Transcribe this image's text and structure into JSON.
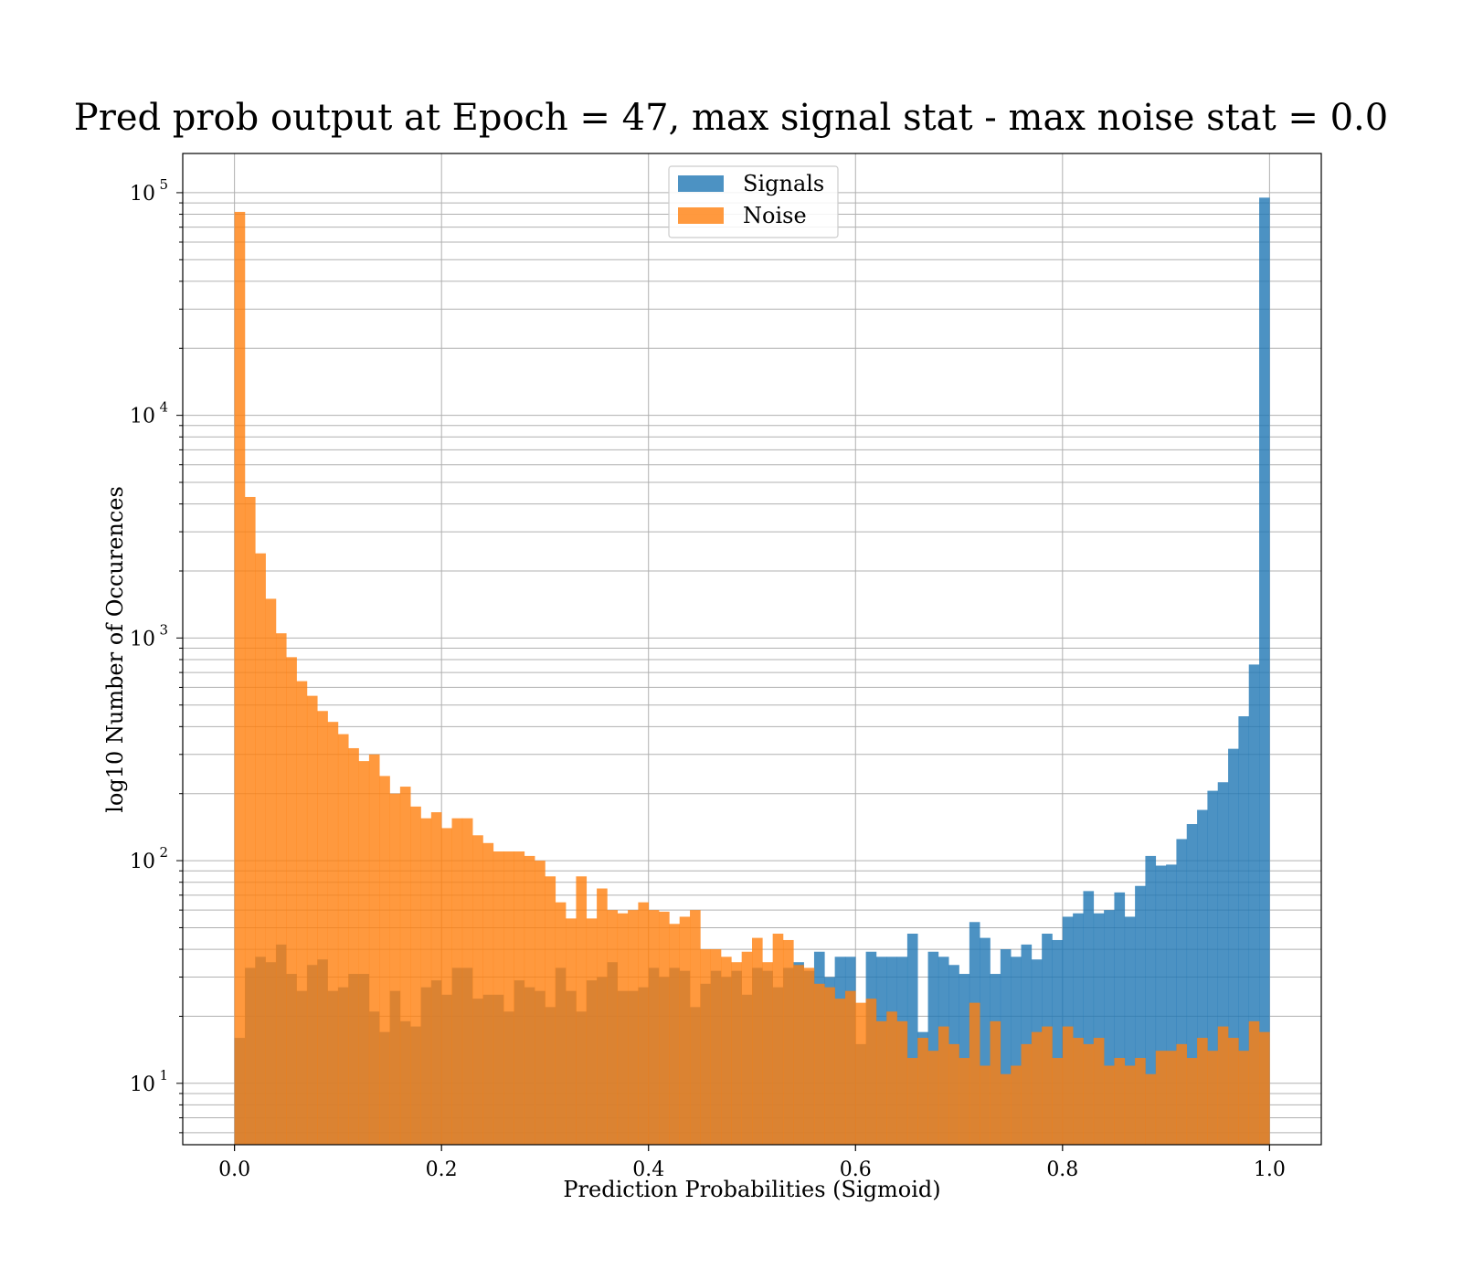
{
  "chart_data": {
    "type": "bar",
    "title": "Pred prob output at Epoch = 47, max signal stat - max noise stat = 0.0",
    "xlabel": "Prediction Probabilities (Sigmoid)",
    "ylabel": "log10 Number of Occurences",
    "xlim": [
      -0.05,
      1.05
    ],
    "ylim": [
      5.3,
      150000
    ],
    "log_y": true,
    "grid": true,
    "legend_position": "top-center",
    "bin_width": 0.01,
    "bin_start": 0.0,
    "x_ticks": [
      0.0,
      0.2,
      0.4,
      0.6,
      0.8,
      1.0
    ],
    "x_tick_labels": [
      "0.0",
      "0.2",
      "0.4",
      "0.6",
      "0.8",
      "1.0"
    ],
    "y_ticks": [
      {
        "value": 10,
        "base": "10",
        "exp": "1"
      },
      {
        "value": 100,
        "base": "10",
        "exp": "2"
      },
      {
        "value": 1000,
        "base": "10",
        "exp": "3"
      },
      {
        "value": 10000,
        "base": "10",
        "exp": "4"
      },
      {
        "value": 100000,
        "base": "10",
        "exp": "5"
      }
    ],
    "series": [
      {
        "name": "Signals",
        "color": "#1f77b4",
        "opacity": 0.8,
        "values": [
          16,
          33,
          37,
          35,
          42,
          31,
          26,
          34,
          36,
          26,
          27,
          31,
          31,
          21,
          17,
          26,
          19,
          18,
          27,
          29,
          25,
          33,
          33,
          24,
          25,
          25,
          21,
          29,
          27,
          26,
          22,
          33,
          26,
          21,
          29,
          30,
          35,
          26,
          26,
          27,
          33,
          30,
          33,
          32,
          22,
          28,
          32,
          30,
          32,
          25,
          33,
          32,
          27,
          33,
          35,
          32,
          39,
          30,
          37,
          37,
          15,
          39,
          37,
          37,
          37,
          47,
          17,
          39,
          37,
          34,
          31,
          53,
          45,
          31,
          40,
          37,
          42,
          36,
          47,
          44,
          56,
          58,
          73,
          58,
          60,
          72,
          56,
          77,
          105,
          95,
          96,
          125,
          146,
          169,
          206,
          225,
          318,
          445,
          760,
          95000
        ]
      },
      {
        "name": "Noise",
        "color": "#ff7f0e",
        "opacity": 0.8,
        "values": [
          82000,
          4300,
          2400,
          1500,
          1050,
          820,
          640,
          550,
          470,
          420,
          370,
          320,
          280,
          300,
          240,
          200,
          215,
          175,
          155,
          165,
          140,
          155,
          155,
          130,
          120,
          110,
          110,
          110,
          105,
          100,
          85,
          65,
          55,
          85,
          55,
          75,
          60,
          58,
          60,
          65,
          60,
          59,
          52,
          56,
          60,
          40,
          40,
          37,
          35,
          39,
          45,
          35,
          47,
          44,
          34,
          33,
          28,
          27,
          24,
          26,
          23,
          24,
          19,
          21,
          19,
          13,
          16,
          14,
          18,
          15,
          13,
          23,
          12,
          19,
          11,
          12,
          15,
          17,
          18,
          13,
          18,
          16,
          15,
          16,
          12,
          13,
          12,
          13,
          11,
          14,
          14,
          15,
          13,
          16,
          14,
          18,
          16,
          14,
          19,
          17
        ]
      }
    ]
  }
}
